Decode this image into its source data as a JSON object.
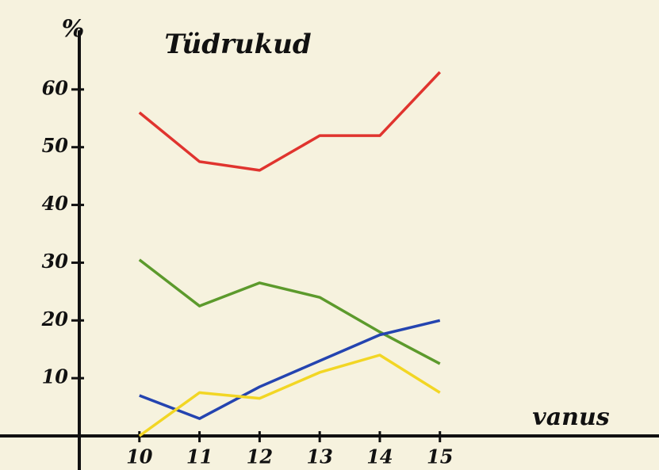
{
  "chart_data": {
    "type": "line",
    "title": "Tüdrukud",
    "ylabel": "%",
    "xlabel": "vanus",
    "x": [
      10,
      11,
      12,
      13,
      14,
      15
    ],
    "series": [
      {
        "color": "#e0342e",
        "values": [
          56,
          47.5,
          46,
          52,
          52,
          63
        ]
      },
      {
        "color": "#5c9a2c",
        "values": [
          30.5,
          22.5,
          26.5,
          24,
          18,
          12.5
        ]
      },
      {
        "color": "#2444b0",
        "values": [
          7,
          3,
          8.5,
          13,
          17.5,
          20
        ]
      },
      {
        "color": "#f2d624",
        "values": [
          0,
          7.5,
          6.5,
          11,
          14,
          7.5
        ]
      }
    ],
    "xlim": [
      9,
      18.5
    ],
    "ylim": [
      0,
      70
    ],
    "xticks": [
      10,
      11,
      12,
      13,
      14,
      15
    ],
    "yticks": [
      10,
      20,
      30,
      40,
      50,
      60
    ]
  }
}
